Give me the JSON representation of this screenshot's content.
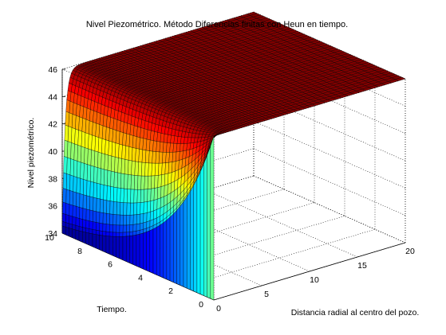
{
  "chart_data": {
    "type": "surface",
    "title": "Nivel Piezométrico. Método Diferencias finitas con Heun en tiempo.",
    "xlabel": "Distancia radial al centro del pozo.",
    "ylabel": "Tiempo.",
    "zlabel": "Nivel piezométrico.",
    "xlim": [
      0,
      20
    ],
    "ylim": [
      0,
      10
    ],
    "zlim": [
      34,
      46
    ],
    "x_ticks": [
      0,
      5,
      10,
      15,
      20
    ],
    "y_ticks": [
      0,
      2,
      4,
      6,
      8,
      10
    ],
    "z_ticks": [
      34,
      36,
      38,
      40,
      42,
      44,
      46
    ],
    "grid": true,
    "colormap": "jet",
    "surface": {
      "initial_level": 46,
      "boundary_level_at_well": 34,
      "drawdown_time_scale": 3.0,
      "drawdown_radius_scale": 0.3,
      "x_samples": 60,
      "y_samples": 45
    }
  }
}
